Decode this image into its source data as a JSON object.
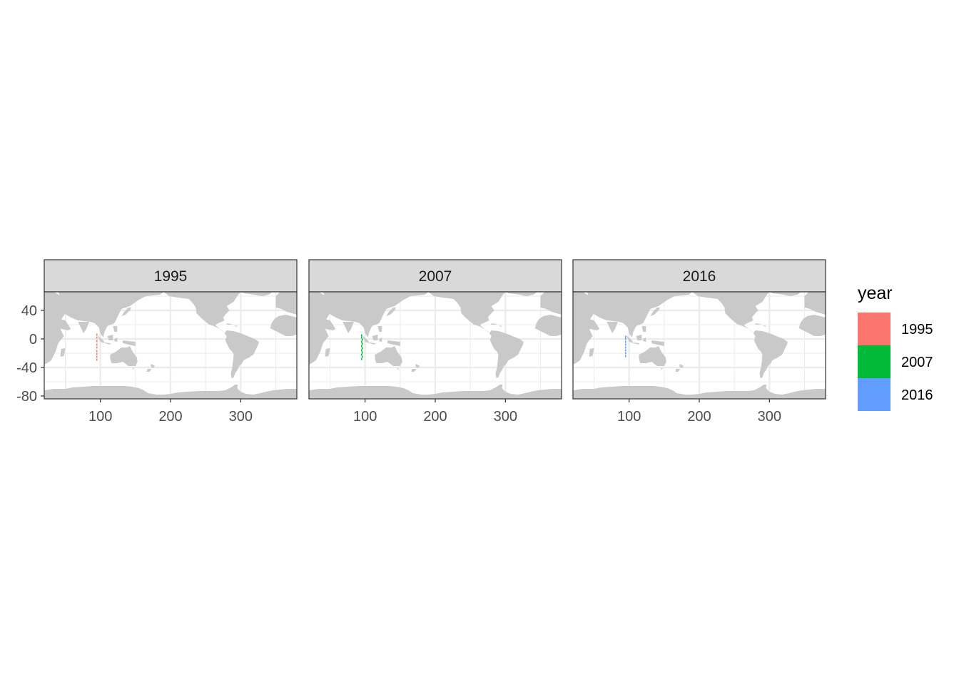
{
  "chart_data": {
    "type": "scatter",
    "facet_by": "year",
    "facets": [
      {
        "label": "1995",
        "color": "#F8766D",
        "points": [
          [
            95,
            6
          ],
          [
            95,
            2
          ],
          [
            95,
            -3
          ],
          [
            95,
            -8
          ],
          [
            95,
            -12
          ],
          [
            95,
            -17
          ],
          [
            95,
            -21
          ],
          [
            95,
            -25
          ],
          [
            95,
            -29
          ]
        ]
      },
      {
        "label": "2007",
        "color": "#00BA38",
        "points": [
          [
            95,
            5
          ],
          [
            95,
            2
          ],
          [
            96,
            -1
          ],
          [
            95,
            -4
          ],
          [
            96,
            -7
          ],
          [
            95,
            -10
          ],
          [
            96,
            -13
          ],
          [
            95,
            -16
          ],
          [
            96,
            -19
          ],
          [
            95,
            -22
          ],
          [
            96,
            -25
          ],
          [
            95,
            -28
          ]
        ]
      },
      {
        "label": "2016",
        "color": "#619CFF",
        "points": [
          [
            95,
            3
          ],
          [
            95,
            0
          ],
          [
            95,
            -4
          ],
          [
            95,
            -8
          ],
          [
            95,
            -12
          ],
          [
            95,
            -16
          ],
          [
            95,
            -20
          ],
          [
            95,
            -24
          ]
        ]
      }
    ],
    "x_ticks": [
      100,
      200,
      300
    ],
    "y_ticks": [
      40,
      0,
      -40,
      -80
    ],
    "x_tick_labels": [
      "100",
      "200",
      "300"
    ],
    "y_tick_labels": [
      "40",
      "0",
      "-40",
      "-80"
    ],
    "xlim": [
      20,
      380
    ],
    "ylim": [
      -84,
      66
    ],
    "grid": true,
    "basemap": "world land (grey)",
    "legend": {
      "title": "year",
      "position": "right",
      "entries": [
        {
          "label": "1995",
          "color": "#F8766D"
        },
        {
          "label": "2007",
          "color": "#00BA38"
        },
        {
          "label": "2016",
          "color": "#619CFF"
        }
      ]
    },
    "colors": {
      "land": "#C9C9C9",
      "grid": "#EBEBEB",
      "strip_fill": "#D9D9D9",
      "border": "#333333"
    }
  }
}
